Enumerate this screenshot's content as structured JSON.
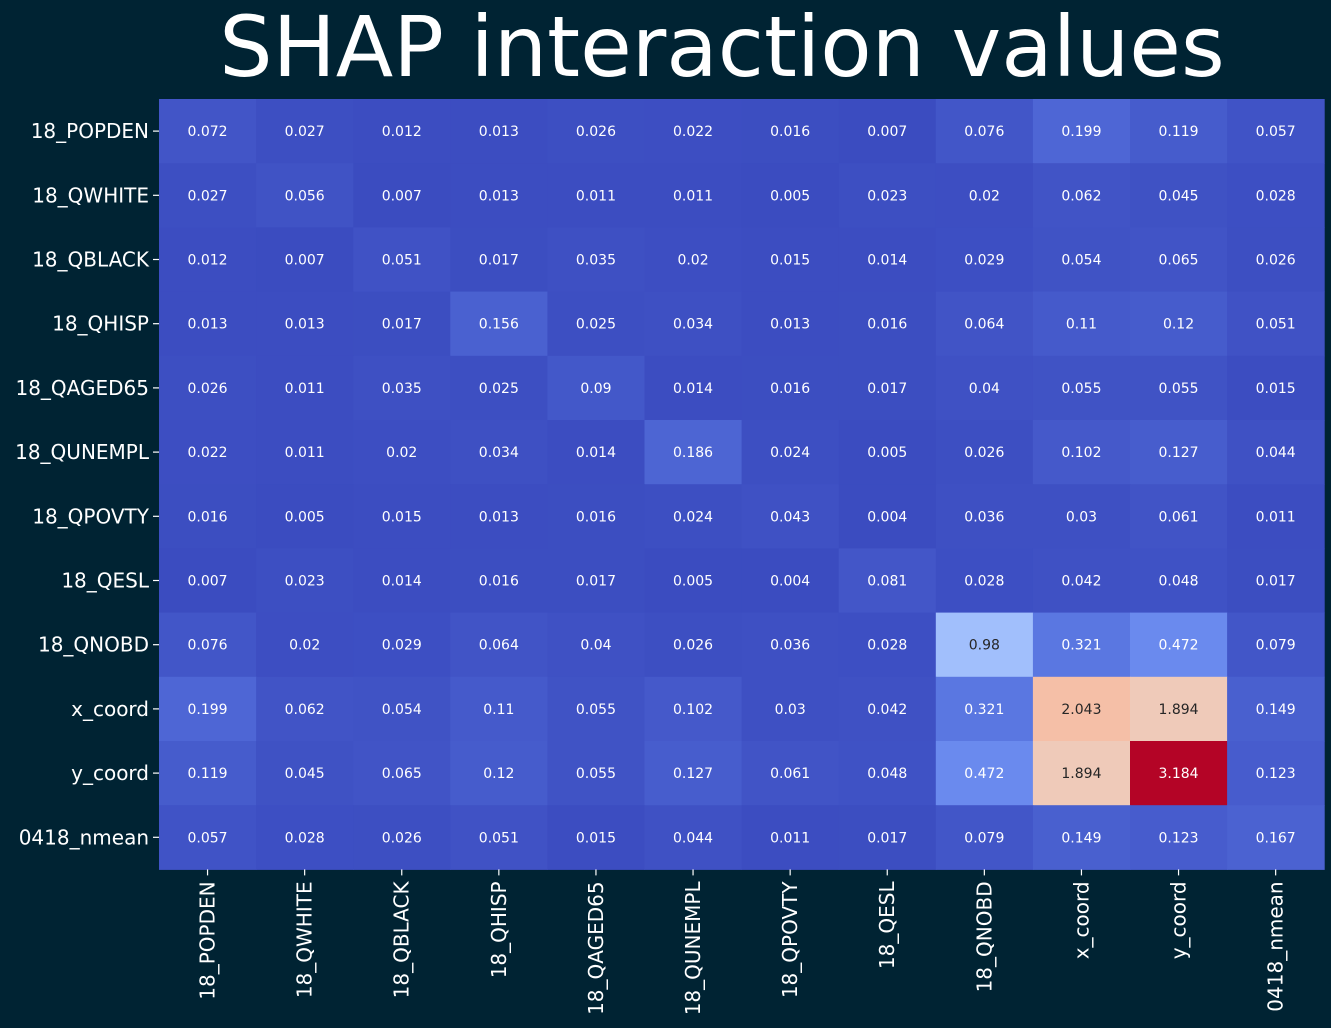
{
  "chart_data": {
    "type": "heatmap",
    "title": "SHAP interaction values",
    "row_labels": [
      "18_POPDEN",
      "18_QWHITE",
      "18_QBLACK",
      "18_QHISP",
      "18_QAGED65",
      "18_QUNEMPL",
      "18_QPOVTY",
      "18_QESL",
      "18_QNOBD",
      "x_coord",
      "y_coord",
      "0418_nmean"
    ],
    "col_labels": [
      "18_POPDEN",
      "18_QWHITE",
      "18_QBLACK",
      "18_QHISP",
      "18_QAGED65",
      "18_QUNEMPL",
      "18_QPOVTY",
      "18_QESL",
      "18_QNOBD",
      "x_coord",
      "y_coord",
      "0418_nmean"
    ],
    "values": [
      [
        0.072,
        0.027,
        0.012,
        0.013,
        0.026,
        0.022,
        0.016,
        0.007,
        0.076,
        0.199,
        0.119,
        0.057
      ],
      [
        0.027,
        0.056,
        0.007,
        0.013,
        0.011,
        0.011,
        0.005,
        0.023,
        0.02,
        0.062,
        0.045,
        0.028
      ],
      [
        0.012,
        0.007,
        0.051,
        0.017,
        0.035,
        0.02,
        0.015,
        0.014,
        0.029,
        0.054,
        0.065,
        0.026
      ],
      [
        0.013,
        0.013,
        0.017,
        0.156,
        0.025,
        0.034,
        0.013,
        0.016,
        0.064,
        0.11,
        0.12,
        0.051
      ],
      [
        0.026,
        0.011,
        0.035,
        0.025,
        0.09,
        0.014,
        0.016,
        0.017,
        0.04,
        0.055,
        0.055,
        0.015
      ],
      [
        0.022,
        0.011,
        0.02,
        0.034,
        0.014,
        0.186,
        0.024,
        0.005,
        0.026,
        0.102,
        0.127,
        0.044
      ],
      [
        0.016,
        0.005,
        0.015,
        0.013,
        0.016,
        0.024,
        0.043,
        0.004,
        0.036,
        0.03,
        0.061,
        0.011
      ],
      [
        0.007,
        0.023,
        0.014,
        0.016,
        0.017,
        0.005,
        0.004,
        0.081,
        0.028,
        0.042,
        0.048,
        0.017
      ],
      [
        0.076,
        0.02,
        0.029,
        0.064,
        0.04,
        0.026,
        0.036,
        0.028,
        0.98,
        0.321,
        0.472,
        0.079
      ],
      [
        0.199,
        0.062,
        0.054,
        0.11,
        0.055,
        0.102,
        0.03,
        0.042,
        0.321,
        2.043,
        1.894,
        0.149
      ],
      [
        0.119,
        0.045,
        0.065,
        0.12,
        0.055,
        0.127,
        0.061,
        0.048,
        0.472,
        1.894,
        3.184,
        0.123
      ],
      [
        0.057,
        0.028,
        0.026,
        0.051,
        0.015,
        0.044,
        0.011,
        0.017,
        0.079,
        0.149,
        0.123,
        0.167
      ]
    ],
    "colormap": "coolwarm",
    "value_range": [
      0.004,
      3.184
    ],
    "colorbar": false,
    "background_color": "#002333",
    "text_color": "#ffffff"
  }
}
